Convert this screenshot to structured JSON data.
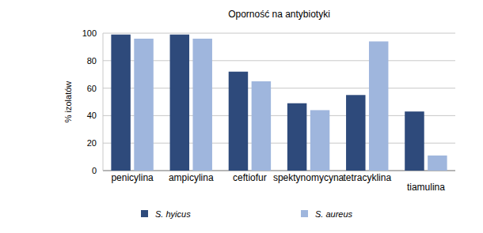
{
  "chart_data": {
    "type": "bar",
    "title": "Oporność na antybiotyki",
    "y_label": "% izolatów",
    "categories": [
      "penicylina",
      "ampicylina",
      "ceftiofur",
      "spektynomycyna",
      "tetracyklina",
      "tiamulina"
    ],
    "series": [
      {
        "name": "S. hyicus",
        "color": "#2e4a7b",
        "values": [
          99,
          99,
          72,
          49,
          55,
          43
        ]
      },
      {
        "name": "S. aureus",
        "color": "#9fb6dd",
        "values": [
          96,
          96,
          65,
          44,
          94,
          11
        ]
      }
    ],
    "ylim": [
      0,
      100
    ],
    "yticks": [
      0,
      20,
      40,
      60,
      80,
      100
    ],
    "grid": true,
    "legend": "bottom"
  }
}
